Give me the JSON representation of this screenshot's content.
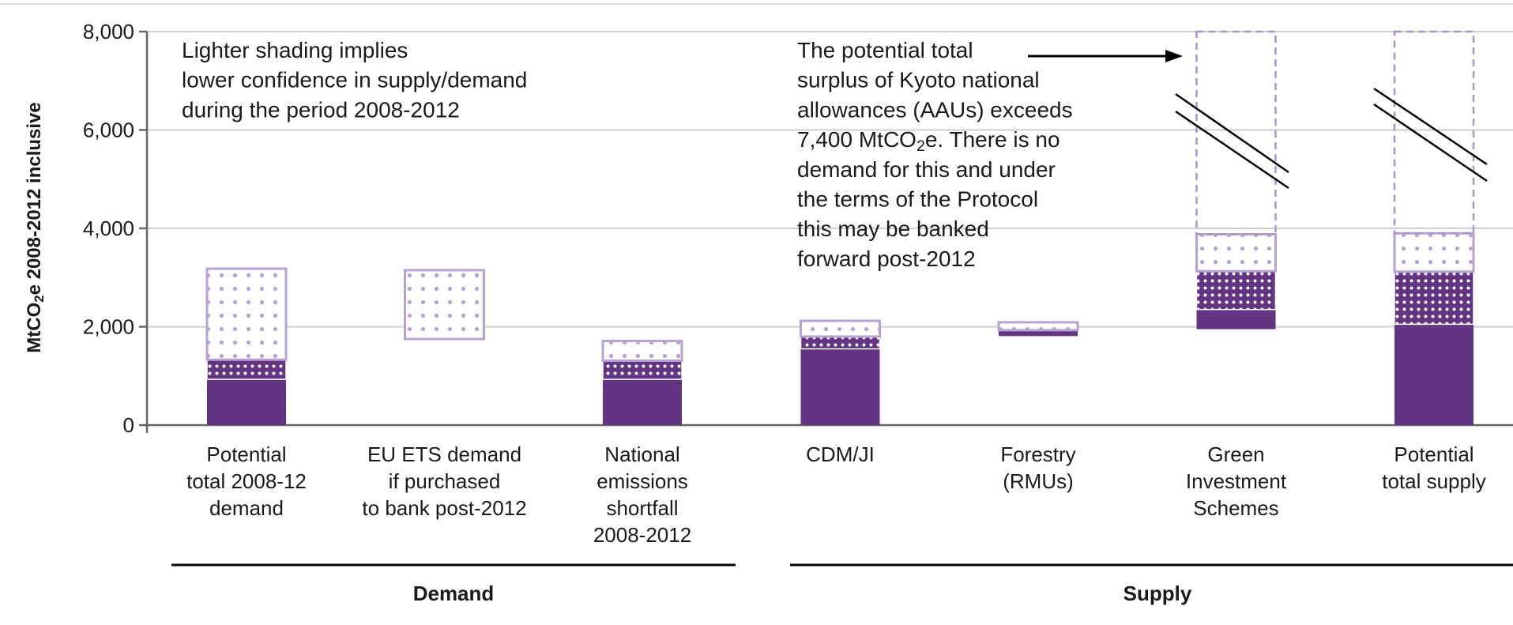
{
  "chart_data": {
    "type": "floating-stacked-bar",
    "ylabel": [
      "MtCO",
      "2",
      "e 2008-2012 inclusive"
    ],
    "categories": [
      [
        "Potential",
        "total 2008-12",
        "demand"
      ],
      [
        "EU ETS demand",
        "if purchased",
        "to bank post-2012"
      ],
      [
        "National",
        "emissions",
        "shortfall",
        "2008-2012"
      ],
      [
        "CDM/JI"
      ],
      [
        "Forestry",
        "(RMUs)"
      ],
      [
        "Green",
        "Investment",
        "Schemes"
      ],
      [
        "Potential",
        "total supply"
      ]
    ],
    "base_values": [
      0,
      1750,
      0,
      0,
      1810,
      1950,
      0
    ],
    "series": [
      {
        "color": "#633481",
        "fill": "solid",
        "values": [
          930,
          null,
          930,
          1550,
          120,
          400,
          2050
        ]
      },
      {
        "color": "#633481",
        "fill": "dots-dense",
        "values": [
          400,
          null,
          380,
          250,
          null,
          780,
          1070
        ]
      },
      {
        "color": "#b7a3d3",
        "fill": "dots-light",
        "values": [
          1850,
          1400,
          400,
          320,
          160,
          750,
          780
        ]
      },
      {
        "color": "#a995c9",
        "fill": "dashed",
        "values": [
          null,
          null,
          null,
          null,
          null,
          4120,
          4100
        ]
      }
    ],
    "ylim": [
      0,
      8000
    ],
    "yticks": [
      0,
      {
        "value": 2000,
        "label": "2,000"
      },
      {
        "value": 4000,
        "label": "4,000"
      },
      {
        "value": 6000,
        "label": "6,000"
      },
      {
        "value": 8000,
        "label": "8,000"
      }
    ],
    "grid": true,
    "annotations": [
      [
        "Lighter shading implies",
        "lower confidence in supply/demand",
        "during the period 2008-2012"
      ],
      [
        "The potential total",
        "surplus of Kyoto national",
        "allowances (AAUs) exceeds",
        [
          "7,400 MtCO",
          "2",
          "e. There is no"
        ],
        "demand for this and under",
        "the terms of the Protocol",
        "this may be banked",
        "forward post-2012"
      ]
    ],
    "groups": [
      "Demand",
      "Supply"
    ]
  }
}
